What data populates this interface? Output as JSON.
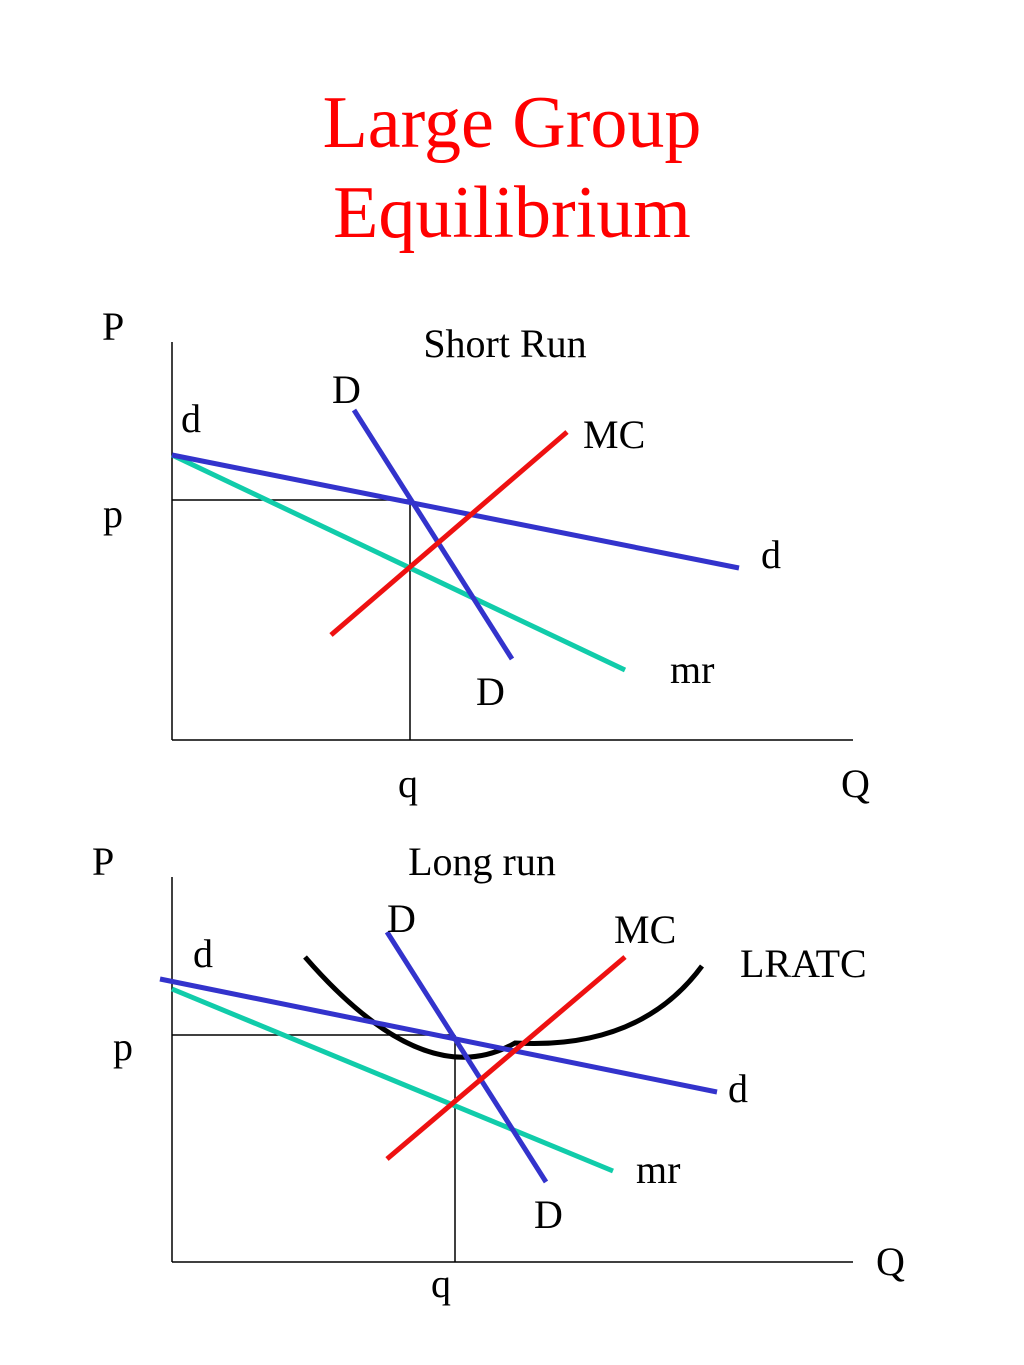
{
  "title_line1": "Large Group",
  "title_line2": "Equilibrium",
  "colors": {
    "title": "#ff0000",
    "demand_d": "#3333cc",
    "demand_D": "#3333cc",
    "mr": "#11ccaa",
    "mc": "#ee1111",
    "lratc": "#000000",
    "axes": "#000000"
  },
  "short_run": {
    "heading": "Short Run",
    "axis_price": "P",
    "axis_quantity": "Q",
    "price_label": "p",
    "quantity_label": "q",
    "d_top": "d",
    "d_end": "d",
    "D_top": "D",
    "D_bottom": "D",
    "mc": "MC",
    "mr": "mr"
  },
  "long_run": {
    "heading": "Long run",
    "axis_price": "P",
    "axis_quantity": "Q",
    "price_label": "p",
    "quantity_label": "q",
    "d_top": "d",
    "d_end": "d",
    "D_top": "D",
    "D_bottom": "D",
    "mc": "MC",
    "mr": "mr",
    "lratc": "LRATC"
  }
}
